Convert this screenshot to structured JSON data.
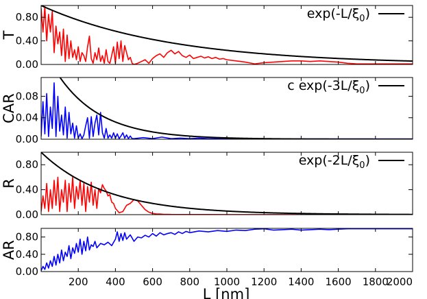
{
  "xlabel": "L [nm]",
  "chart_data": [
    {
      "type": "line",
      "ylabel": "T",
      "xlim": [
        0,
        2000
      ],
      "ylim": [
        0,
        1.0
      ],
      "yticks": [
        "0.00",
        "0.40",
        "0.80"
      ],
      "ytick_values": [
        0,
        0.4,
        0.8
      ],
      "xticks": [],
      "legend": {
        "text": "exp(-L/ξ",
        "sub": "0",
        "close": ")",
        "placement": "top-right"
      },
      "series": [
        {
          "color": "#ff0000",
          "x": [
            0,
            10,
            20,
            30,
            40,
            50,
            60,
            70,
            80,
            90,
            100,
            110,
            120,
            130,
            140,
            150,
            160,
            170,
            180,
            190,
            200,
            210,
            220,
            230,
            240,
            250,
            260,
            270,
            280,
            290,
            300,
            310,
            320,
            330,
            340,
            350,
            360,
            370,
            380,
            390,
            400,
            410,
            420,
            430,
            440,
            450,
            460,
            470,
            480,
            490,
            500,
            520,
            540,
            560,
            580,
            600,
            620,
            640,
            660,
            680,
            700,
            720,
            740,
            760,
            780,
            800,
            820,
            840,
            860,
            880,
            900,
            920,
            940,
            960,
            980,
            1000,
            1050,
            1100,
            1150,
            1200,
            1250,
            1300,
            1350,
            1400,
            1450,
            1500,
            1550,
            1600,
            1650,
            1700,
            1750,
            1800,
            1850,
            1900,
            1950,
            2000
          ],
          "y": [
            0.95,
            0.55,
            0.98,
            0.4,
            0.85,
            0.55,
            0.9,
            0.2,
            0.65,
            0.35,
            0.55,
            0.15,
            0.6,
            0.05,
            0.5,
            0.1,
            0.4,
            0.12,
            0.25,
            0.08,
            0.3,
            0.05,
            0.2,
            0.15,
            0.05,
            0.3,
            0.48,
            0.1,
            0.02,
            0.2,
            0.08,
            0.28,
            0.05,
            0.15,
            0.02,
            0.25,
            0.05,
            0.02,
            0.15,
            0.3,
            0.02,
            0.38,
            0.1,
            0.4,
            0.05,
            0.32,
            0.2,
            0.08,
            0.12,
            0.02,
            0.0,
            0.02,
            0.05,
            0.08,
            0.02,
            0.1,
            0.15,
            0.18,
            0.12,
            0.2,
            0.24,
            0.18,
            0.22,
            0.15,
            0.12,
            0.16,
            0.1,
            0.12,
            0.14,
            0.11,
            0.13,
            0.1,
            0.12,
            0.09,
            0.1,
            0.08,
            0.06,
            0.04,
            0.01,
            0.03,
            0.04,
            0.05,
            0.06,
            0.06,
            0.05,
            0.06,
            0.05,
            0.04,
            0.02,
            0.01,
            0.01,
            0.01,
            0.01,
            0.01,
            0.01,
            0.01
          ]
        },
        {
          "color": "#000000",
          "function": "exp",
          "a": 1.0,
          "k": 1,
          "xi0": 700
        }
      ]
    },
    {
      "type": "line",
      "ylabel": "CAR",
      "xlim": [
        0,
        2000
      ],
      "ylim": [
        0,
        0.115
      ],
      "yticks": [
        "0.00",
        "0.04",
        "0.08"
      ],
      "ytick_values": [
        0,
        0.04,
        0.08
      ],
      "xticks": [],
      "legend": {
        "text": "c exp(-3L/ξ",
        "sub": "0",
        "close": ")",
        "placement": "top-right"
      },
      "series": [
        {
          "color": "#0000ff",
          "x": [
            0,
            10,
            20,
            30,
            40,
            50,
            60,
            70,
            80,
            90,
            100,
            110,
            120,
            130,
            140,
            150,
            160,
            170,
            180,
            190,
            200,
            210,
            220,
            230,
            240,
            250,
            260,
            270,
            280,
            290,
            300,
            310,
            320,
            330,
            340,
            350,
            360,
            370,
            380,
            390,
            400,
            410,
            420,
            430,
            440,
            450,
            460,
            470,
            480,
            490,
            500,
            550,
            600,
            650,
            700,
            750,
            800,
            850,
            900,
            950,
            1000,
            1100,
            1200,
            1400,
            1600,
            1800,
            2000
          ],
          "y": [
            0.005,
            0.07,
            0.01,
            0.085,
            0.005,
            0.06,
            0.02,
            0.105,
            0.005,
            0.08,
            0.015,
            0.045,
            0.008,
            0.06,
            0.002,
            0.05,
            0.01,
            0.03,
            0.002,
            0.025,
            0.002,
            0.01,
            0.001,
            0.008,
            0.025,
            0.04,
            0.002,
            0.042,
            0.005,
            0.03,
            0.045,
            0.008,
            0.05,
            0.012,
            0.002,
            0.02,
            0.002,
            0.008,
            0.002,
            0.012,
            0.002,
            0.01,
            0.001,
            0.006,
            0.012,
            0.002,
            0.008,
            0.001,
            0.006,
            0.001,
            0.001,
            0.003,
            0.001,
            0.004,
            0.001,
            0.002,
            0.001,
            0.002,
            0.001,
            0.001,
            0.001,
            0.001,
            0.0005,
            0.0005,
            0.0005,
            0.0005,
            0.0005
          ]
        },
        {
          "color": "#000000",
          "function": "exp",
          "a": 0.178,
          "k": 3,
          "xi0": 700
        }
      ]
    },
    {
      "type": "line",
      "ylabel": "R",
      "xlim": [
        0,
        2000
      ],
      "ylim": [
        0,
        1.0
      ],
      "yticks": [
        "0.00",
        "0.40",
        "0.80"
      ],
      "ytick_values": [
        0,
        0.4,
        0.8
      ],
      "xticks": [],
      "legend": {
        "text": "exp(-2L/ξ",
        "sub": "0",
        "close": ")",
        "placement": "top-right"
      },
      "series": [
        {
          "color": "#ff0000",
          "x": [
            0,
            10,
            20,
            30,
            40,
            50,
            60,
            70,
            80,
            90,
            100,
            110,
            120,
            130,
            140,
            150,
            160,
            170,
            180,
            190,
            200,
            210,
            220,
            230,
            240,
            250,
            260,
            270,
            280,
            290,
            300,
            310,
            320,
            330,
            340,
            350,
            360,
            370,
            380,
            390,
            400,
            420,
            440,
            460,
            480,
            500,
            520,
            540,
            560,
            580,
            600,
            620,
            640,
            660,
            680,
            700,
            750,
            800,
            900,
            1000,
            1200,
            1400,
            1600,
            1800,
            2000
          ],
          "y": [
            0.05,
            0.3,
            0.1,
            0.5,
            0.05,
            0.4,
            0.1,
            0.55,
            0.15,
            0.6,
            0.05,
            0.4,
            0.2,
            0.55,
            0.05,
            0.5,
            0.2,
            0.6,
            0.1,
            0.45,
            0.25,
            0.55,
            0.15,
            0.5,
            0.05,
            0.45,
            0.2,
            0.52,
            0.15,
            0.4,
            0.1,
            0.42,
            0.35,
            0.48,
            0.42,
            0.38,
            0.3,
            0.32,
            0.2,
            0.18,
            0.1,
            0.03,
            0.05,
            0.15,
            0.18,
            0.24,
            0.22,
            0.15,
            0.08,
            0.04,
            0.02,
            0.01,
            0.01,
            0.005,
            0.005,
            0.003,
            0.002,
            0.002,
            0.002,
            0.001,
            0.001,
            0.001,
            0.001,
            0.001,
            0.001
          ]
        },
        {
          "color": "#000000",
          "function": "exp",
          "a": 1.0,
          "k": 2,
          "xi0": 700
        }
      ]
    },
    {
      "type": "line",
      "ylabel": "AR",
      "xlim": [
        0,
        2000
      ],
      "ylim": [
        0,
        1.0
      ],
      "yticks": [
        "0.00",
        "0.40",
        "0.80"
      ],
      "ytick_values": [
        0,
        0.4,
        0.8
      ],
      "xticks": [
        "200",
        "400",
        "600",
        "800",
        "1000",
        "1200",
        "1400",
        "1600",
        "1800",
        "2000"
      ],
      "xtick_values": [
        200,
        400,
        600,
        800,
        1000,
        1200,
        1400,
        1600,
        1800,
        2000
      ],
      "series": [
        {
          "color": "#0000ff",
          "x": [
            0,
            10,
            20,
            30,
            40,
            50,
            60,
            70,
            80,
            90,
            100,
            110,
            120,
            130,
            140,
            150,
            160,
            170,
            180,
            190,
            200,
            210,
            220,
            230,
            240,
            250,
            260,
            270,
            280,
            290,
            300,
            320,
            340,
            360,
            380,
            400,
            410,
            420,
            430,
            440,
            450,
            460,
            480,
            500,
            520,
            540,
            560,
            580,
            600,
            620,
            640,
            660,
            680,
            700,
            720,
            740,
            760,
            780,
            800,
            850,
            900,
            950,
            1000,
            1050,
            1100,
            1150,
            1200,
            1250,
            1300,
            1350,
            1400,
            1450,
            1500,
            1550,
            1600,
            1650,
            1700,
            1750,
            1800,
            1850,
            1900,
            1950,
            2000
          ],
          "y": [
            0.02,
            0.12,
            0.05,
            0.2,
            0.08,
            0.25,
            0.12,
            0.35,
            0.15,
            0.4,
            0.2,
            0.5,
            0.25,
            0.45,
            0.35,
            0.6,
            0.3,
            0.55,
            0.42,
            0.65,
            0.45,
            0.75,
            0.4,
            0.7,
            0.48,
            0.8,
            0.5,
            0.62,
            0.58,
            0.7,
            0.55,
            0.65,
            0.62,
            0.68,
            0.6,
            0.75,
            0.92,
            0.7,
            0.88,
            0.72,
            0.9,
            0.75,
            0.85,
            0.7,
            0.8,
            0.78,
            0.84,
            0.8,
            0.88,
            0.82,
            0.9,
            0.85,
            0.88,
            0.9,
            0.86,
            0.92,
            0.88,
            0.93,
            0.9,
            0.94,
            0.92,
            0.95,
            0.93,
            0.96,
            0.95,
            0.98,
            0.99,
            0.96,
            0.97,
            0.98,
            0.96,
            0.97,
            0.98,
            0.97,
            0.98,
            0.99,
            0.99,
            0.99,
            0.99,
            0.99,
            0.99,
            0.99,
            0.99
          ]
        }
      ]
    }
  ]
}
